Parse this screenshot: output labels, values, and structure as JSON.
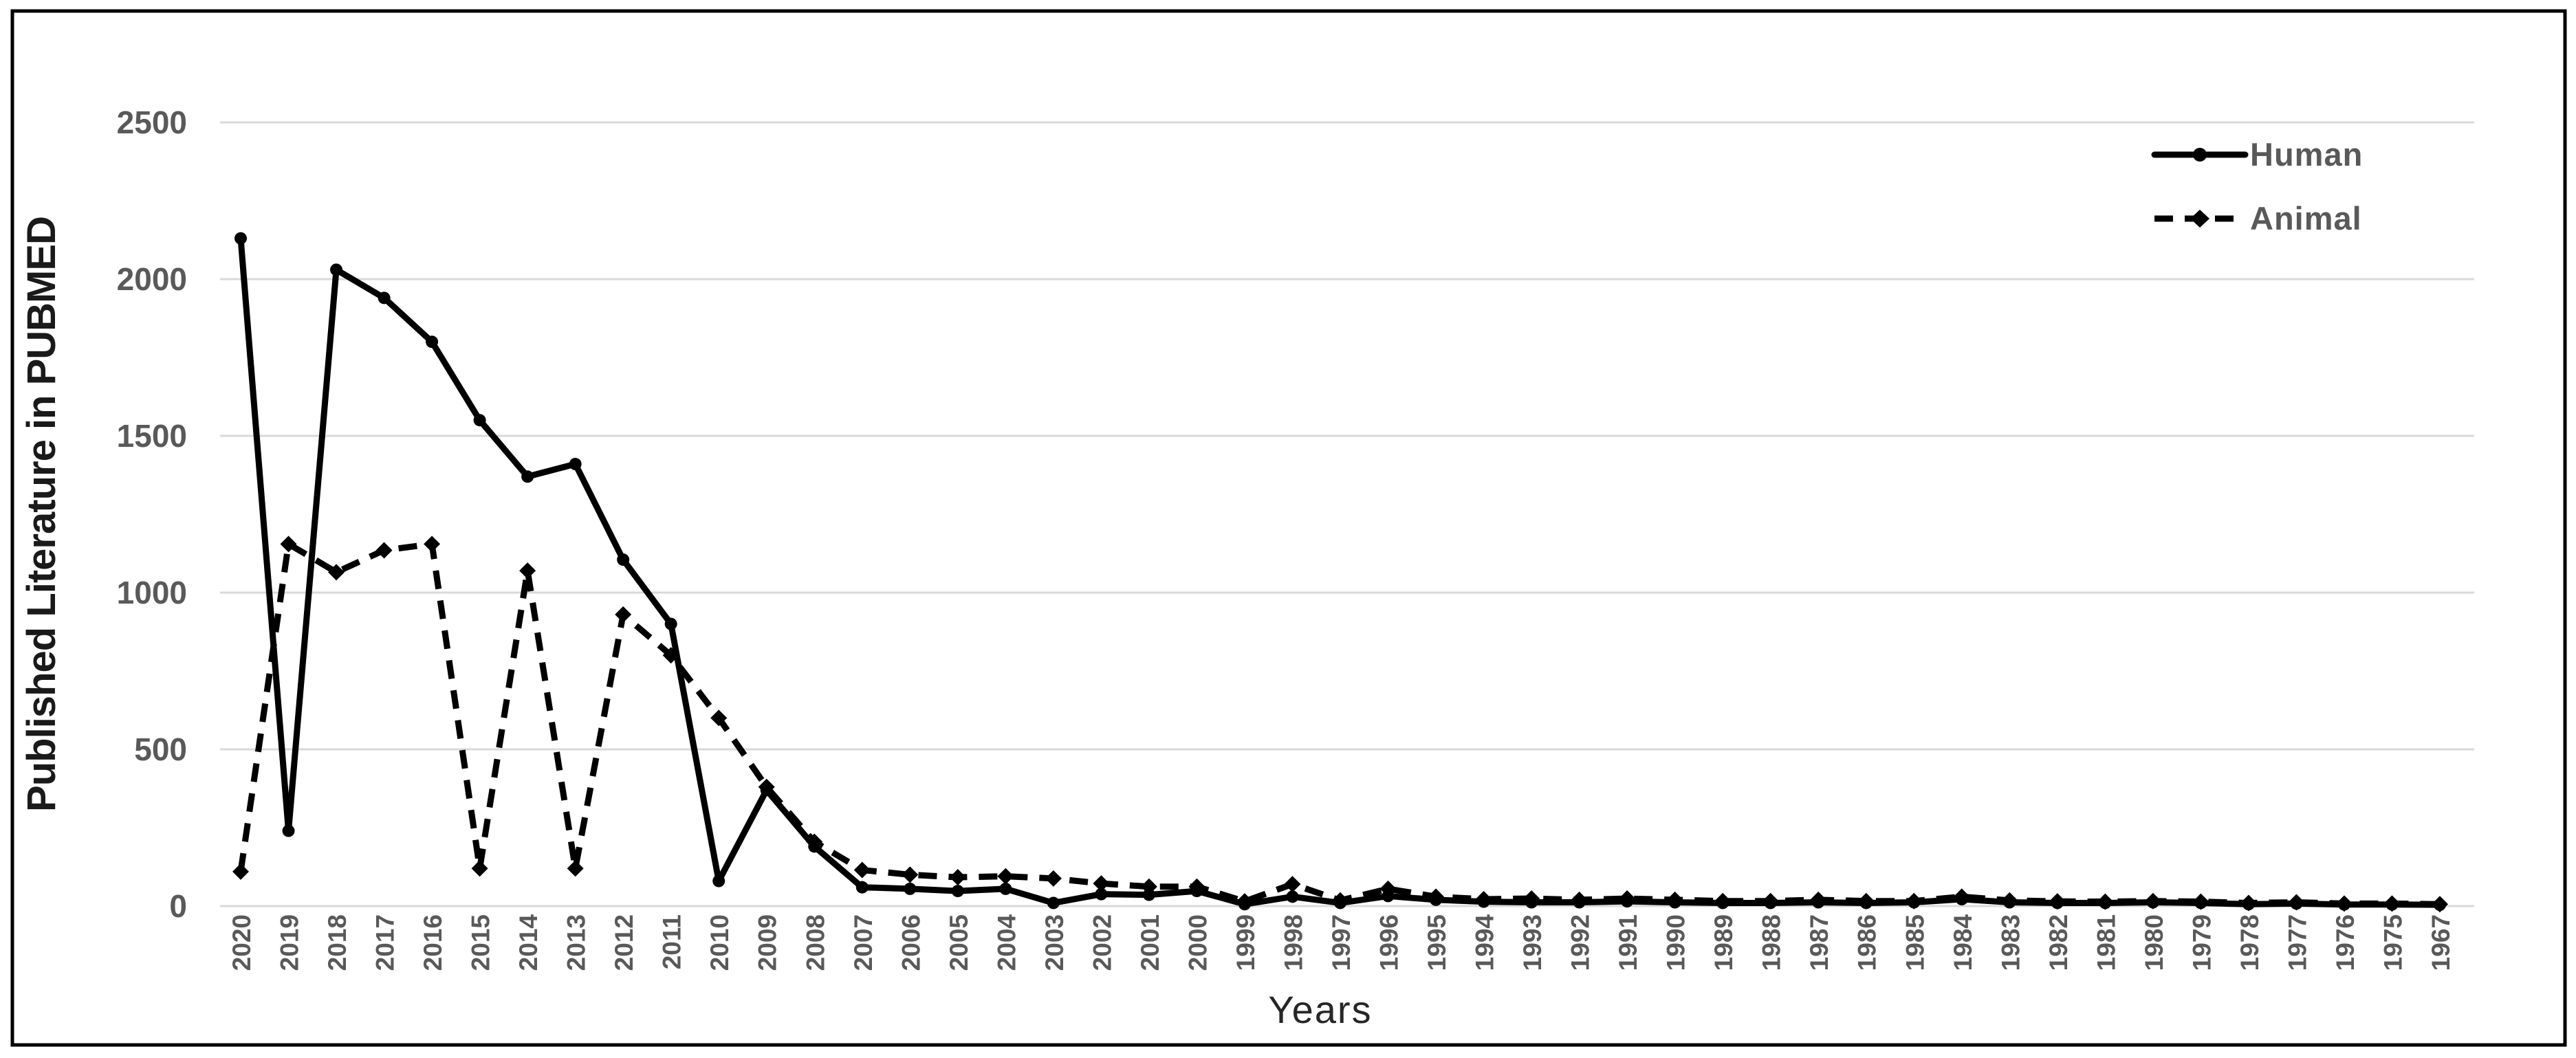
{
  "window": {
    "background": "#ffffff",
    "border_color": "#000000"
  },
  "colors": {
    "tick_text": "#595959",
    "legend_text": "#595959",
    "grid_line": "#d9d9d9",
    "axis_title_text": "#1a1a1a",
    "series_line": "#000000"
  },
  "chart_data": {
    "type": "line",
    "title": "",
    "xlabel": "Years",
    "ylabel": "Published Literature in PUBMED",
    "grid": "horizontal",
    "legend_position": "top-right",
    "ylim": [
      0,
      2500
    ],
    "y_ticks": [
      0,
      500,
      1000,
      1500,
      2000,
      2500
    ],
    "x_categories": [
      "2020",
      "2019",
      "2018",
      "2017",
      "2016",
      "2015",
      "2014",
      "2013",
      "2012",
      "2011",
      "2010",
      "2009",
      "2008",
      "2007",
      "2006",
      "2005",
      "2004",
      "2003",
      "2002",
      "2001",
      "2000",
      "1999",
      "1998",
      "1997",
      "1996",
      "1995",
      "1994",
      "1993",
      "1992",
      "1991",
      "1990",
      "1989",
      "1988",
      "1987",
      "1986",
      "1985",
      "1984",
      "1983",
      "1982",
      "1981",
      "1980",
      "1979",
      "1978",
      "1977",
      "1976",
      "1975",
      "1967"
    ],
    "series": [
      {
        "name": "Human",
        "line_style": "solid",
        "marker": "circle",
        "color": "#000000",
        "values": [
          2130,
          240,
          2030,
          1940,
          1800,
          1550,
          1370,
          1410,
          1105,
          900,
          80,
          370,
          190,
          60,
          55,
          48,
          55,
          10,
          38,
          36,
          48,
          6,
          30,
          10,
          32,
          20,
          14,
          12,
          12,
          15,
          12,
          10,
          10,
          12,
          10,
          12,
          22,
          12,
          10,
          10,
          12,
          10,
          6,
          8,
          5,
          5,
          4
        ]
      },
      {
        "name": "Animal",
        "line_style": "dashed",
        "marker": "diamond",
        "color": "#000000",
        "values": [
          110,
          1155,
          1065,
          1135,
          1155,
          120,
          1070,
          120,
          930,
          800,
          600,
          380,
          205,
          115,
          100,
          92,
          95,
          88,
          72,
          62,
          62,
          15,
          70,
          18,
          55,
          30,
          22,
          24,
          20,
          24,
          20,
          16,
          16,
          20,
          16,
          16,
          30,
          18,
          15,
          14,
          16,
          14,
          10,
          12,
          8,
          8,
          6
        ]
      }
    ]
  }
}
